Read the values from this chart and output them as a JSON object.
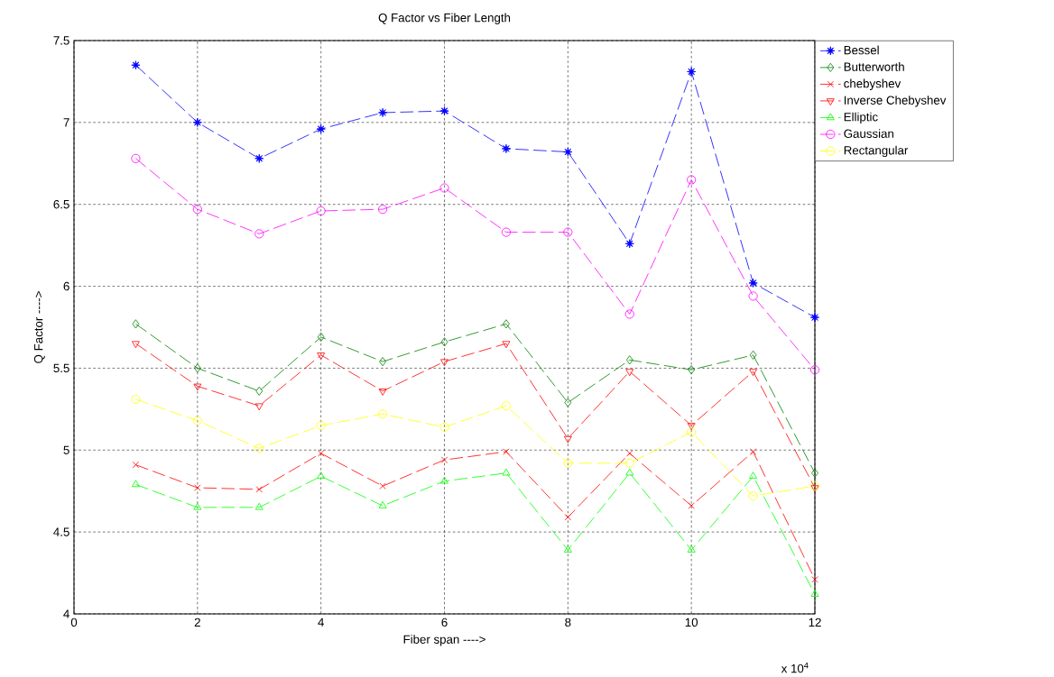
{
  "chart_data": {
    "type": "line",
    "title": "Q Factor vs Fiber Length",
    "xlabel": "Fiber span ---->",
    "ylabel": "Q Factor ---->",
    "x": [
      1,
      2,
      3,
      4,
      5,
      6,
      7,
      8,
      9,
      10,
      11,
      12
    ],
    "series": [
      {
        "name": "Bessel",
        "color": "#0000ff",
        "marker": "star",
        "values": [
          7.35,
          7.0,
          6.78,
          6.96,
          7.06,
          7.07,
          6.84,
          6.82,
          6.26,
          7.31,
          6.02,
          5.81
        ]
      },
      {
        "name": "Butterworth",
        "color": "#008000",
        "marker": "diamond",
        "values": [
          5.77,
          5.5,
          5.36,
          5.69,
          5.54,
          5.66,
          5.77,
          5.29,
          5.55,
          5.49,
          5.58,
          4.86
        ]
      },
      {
        "name": "chebyshev",
        "color": "#ff0000",
        "marker": "cross",
        "values": [
          4.91,
          4.77,
          4.76,
          4.98,
          4.78,
          4.94,
          4.99,
          4.59,
          4.98,
          4.66,
          4.99,
          4.21
        ]
      },
      {
        "name": "Inverse Chebyshev",
        "color": "#ff0000",
        "marker": "triangle-down",
        "values": [
          5.65,
          5.39,
          5.27,
          5.58,
          5.36,
          5.54,
          5.65,
          5.07,
          5.48,
          5.15,
          5.48,
          4.77
        ]
      },
      {
        "name": "Elliptic",
        "color": "#00ff00",
        "marker": "triangle",
        "values": [
          4.79,
          4.65,
          4.65,
          4.84,
          4.66,
          4.81,
          4.86,
          4.39,
          4.86,
          4.39,
          4.84,
          4.12
        ]
      },
      {
        "name": "Gaussian",
        "color": "#ff00ff",
        "marker": "circle",
        "values": [
          6.78,
          6.47,
          6.32,
          6.46,
          6.47,
          6.6,
          6.33,
          6.33,
          5.83,
          6.65,
          5.94,
          5.49
        ]
      },
      {
        "name": "Rectangular",
        "color": "#ffff00",
        "marker": "circle",
        "values": [
          5.31,
          5.18,
          5.01,
          5.15,
          5.22,
          5.14,
          5.27,
          4.92,
          4.92,
          5.11,
          4.72,
          4.78
        ]
      }
    ],
    "xlim": [
      0,
      12
    ],
    "xticks": [
      0,
      2,
      4,
      6,
      8,
      10,
      12
    ],
    "ylim": [
      4,
      7.5
    ],
    "yticks": [
      4,
      4.5,
      5,
      5.5,
      6,
      6.5,
      7,
      7.5
    ],
    "grid": true,
    "legend": "right",
    "line_style": "dashed",
    "annotations": [
      "x 10$^{4}$"
    ]
  }
}
